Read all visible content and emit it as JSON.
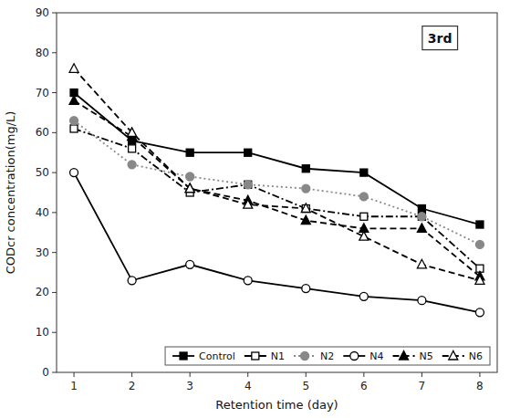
{
  "chart_data": {
    "type": "line",
    "xlabel": "Retention time (day)",
    "ylabel": "CODcr concentration(mg/L)",
    "x": [
      1,
      2,
      3,
      4,
      5,
      6,
      7,
      8
    ],
    "series": [
      {
        "name": "Control",
        "color": "#000000",
        "marker": "square",
        "line_style": "solid",
        "values": [
          70,
          58,
          55,
          55,
          51,
          50,
          41,
          37
        ]
      },
      {
        "name": "N1",
        "color": "#000000",
        "marker": "square-open",
        "line_style": "dashdot",
        "values": [
          61,
          56,
          45,
          47,
          41,
          39,
          39,
          26
        ]
      },
      {
        "name": "N2",
        "color": "#888888",
        "marker": "circle",
        "line_style": "dotted",
        "values": [
          63,
          52,
          49,
          47,
          46,
          44,
          39,
          32
        ]
      },
      {
        "name": "N4",
        "color": "#000000",
        "marker": "circle-open",
        "line_style": "solid",
        "values": [
          50,
          23,
          27,
          23,
          21,
          19,
          18,
          15
        ]
      },
      {
        "name": "N5",
        "color": "#000000",
        "marker": "triangle",
        "line_style": "dashed",
        "values": [
          68,
          59,
          46,
          43,
          38,
          36,
          36,
          24
        ]
      },
      {
        "name": "N6",
        "color": "#000000",
        "marker": "triangle-open",
        "line_style": "dashed",
        "values": [
          76,
          60,
          46,
          42,
          41,
          34,
          27,
          23
        ]
      }
    ],
    "xlim": [
      0.7,
      8.3
    ],
    "ylim": [
      0,
      90
    ],
    "xticks": [
      1,
      2,
      3,
      4,
      5,
      6,
      7,
      8
    ],
    "yticks": [
      0,
      10,
      20,
      30,
      40,
      50,
      60,
      70,
      80,
      90
    ],
    "annotations": [
      "3rd"
    ],
    "grid": false,
    "legend": "lower right"
  }
}
